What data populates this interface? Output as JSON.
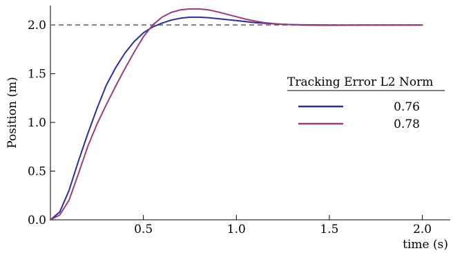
{
  "chart_data": {
    "type": "line",
    "xlabel": "time (s)",
    "ylabel": "Position (m)",
    "xlim": [
      0,
      2.15
    ],
    "ylim": [
      0,
      2.2
    ],
    "x_ticks": [
      {
        "value": 0.5,
        "label": "0.5"
      },
      {
        "value": 1.0,
        "label": "1.0"
      },
      {
        "value": 1.5,
        "label": "1.5"
      },
      {
        "value": 2.0,
        "label": "2.0"
      }
    ],
    "y_ticks": [
      {
        "value": 0.0,
        "label": "0.0"
      },
      {
        "value": 0.5,
        "label": "0.5"
      },
      {
        "value": 1.0,
        "label": "1.0"
      },
      {
        "value": 1.5,
        "label": "1.5"
      },
      {
        "value": 2.0,
        "label": "2.0"
      }
    ],
    "reference_line": {
      "y": 2.0,
      "style": "dashed",
      "color": "#808080"
    },
    "legend": {
      "title": "Tracking Error L2 Norm",
      "placement": "right"
    },
    "series": [
      {
        "name": "0.76",
        "color": "#2a2aa8",
        "x": [
          0,
          0.05,
          0.1,
          0.15,
          0.2,
          0.25,
          0.3,
          0.35,
          0.4,
          0.45,
          0.5,
          0.55,
          0.6,
          0.65,
          0.7,
          0.75,
          0.8,
          0.85,
          0.9,
          0.95,
          1.0,
          1.05,
          1.1,
          1.15,
          1.2,
          1.25,
          1.3,
          1.35,
          1.4,
          1.5,
          1.6,
          1.7,
          1.8,
          1.9,
          2.0
        ],
        "y": [
          0,
          0.08,
          0.3,
          0.6,
          0.88,
          1.14,
          1.38,
          1.56,
          1.71,
          1.83,
          1.92,
          1.98,
          2.02,
          2.05,
          2.07,
          2.08,
          2.08,
          2.075,
          2.065,
          2.055,
          2.045,
          2.035,
          2.025,
          2.018,
          2.012,
          2.007,
          2.004,
          2.002,
          2.001,
          2.0,
          2.0,
          2.0,
          2.0,
          2.0,
          2.0
        ]
      },
      {
        "name": "0.78",
        "color": "#9b3a7a",
        "x": [
          0,
          0.05,
          0.1,
          0.15,
          0.2,
          0.25,
          0.3,
          0.35,
          0.4,
          0.45,
          0.5,
          0.55,
          0.6,
          0.65,
          0.7,
          0.75,
          0.8,
          0.85,
          0.9,
          0.95,
          1.0,
          1.05,
          1.1,
          1.15,
          1.2,
          1.25,
          1.3,
          1.35,
          1.4,
          1.5,
          1.6,
          1.7,
          1.8,
          1.9,
          2.0
        ],
        "y": [
          0,
          0.05,
          0.2,
          0.47,
          0.75,
          0.98,
          1.18,
          1.37,
          1.55,
          1.72,
          1.88,
          2.0,
          2.08,
          2.13,
          2.155,
          2.165,
          2.165,
          2.155,
          2.135,
          2.11,
          2.085,
          2.06,
          2.04,
          2.025,
          2.015,
          2.008,
          2.004,
          2.0,
          1.998,
          1.997,
          1.998,
          1.999,
          2.0,
          2.0,
          2.0
        ]
      }
    ]
  }
}
